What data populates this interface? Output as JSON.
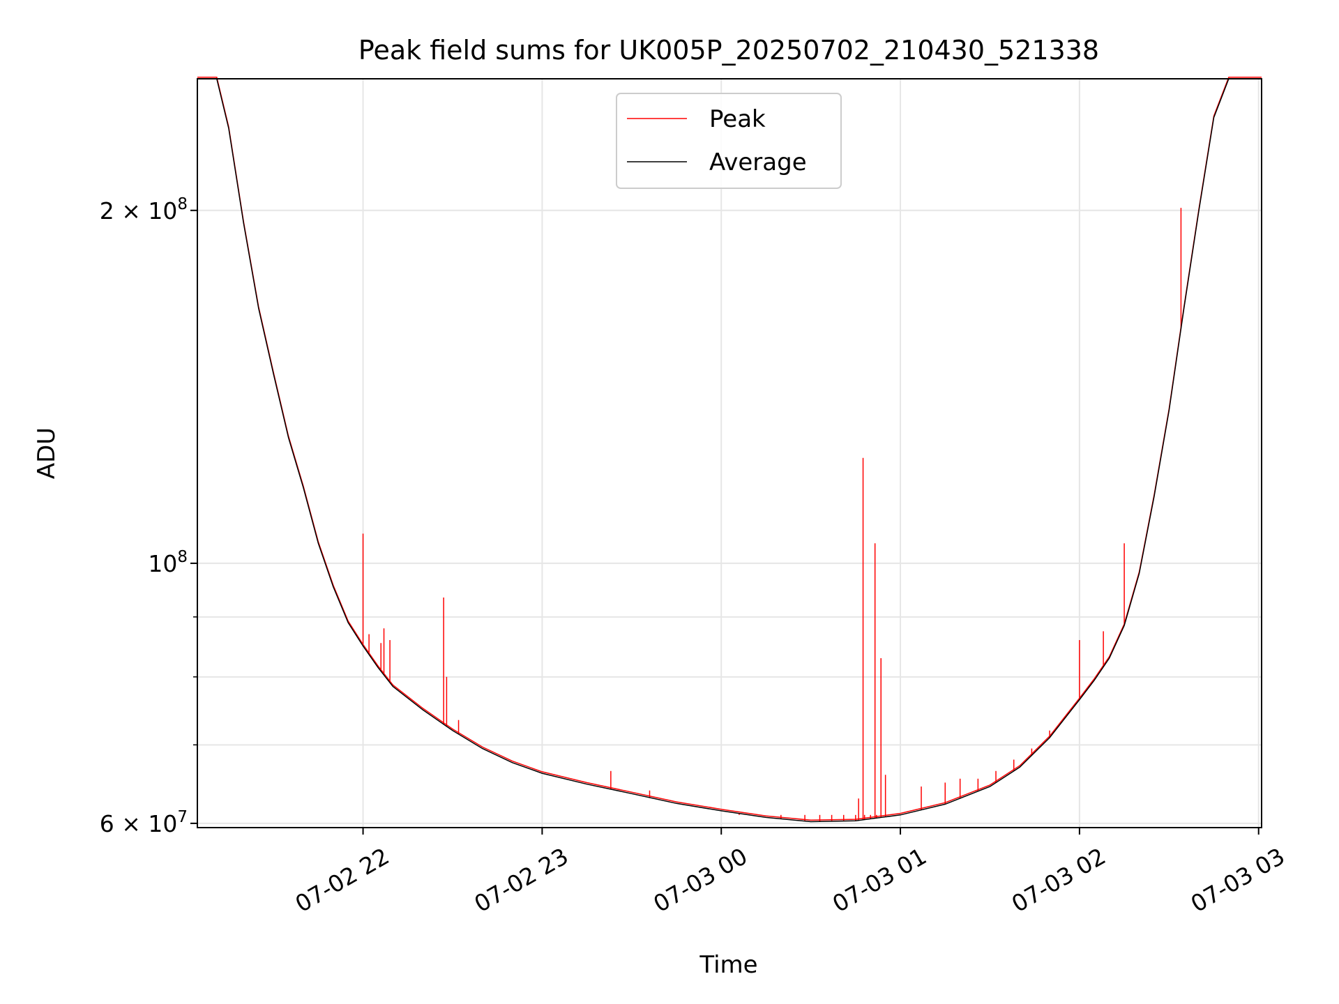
{
  "chart_data": {
    "type": "line",
    "title": "Peak field sums for UK005P_20250702_210430_521338",
    "xlabel": "Time",
    "ylabel": "ADU",
    "x_axis": {
      "type": "datetime",
      "range": [
        "2025-07-02T21:04:30",
        "2025-07-03T03:01:00"
      ],
      "ticks": [
        {
          "value": "2025-07-02T22:00",
          "label": "07-02 22"
        },
        {
          "value": "2025-07-02T23:00",
          "label": "07-02 23"
        },
        {
          "value": "2025-07-03T00:00",
          "label": "07-03 00"
        },
        {
          "value": "2025-07-03T01:00",
          "label": "07-03 01"
        },
        {
          "value": "2025-07-03T02:00",
          "label": "07-03 02"
        },
        {
          "value": "2025-07-03T03:00",
          "label": "07-03 03"
        }
      ]
    },
    "y_axis": {
      "scale": "log",
      "range": [
        59500000,
        259000000
      ],
      "major_ticks": [
        {
          "value": 100000000,
          "base": "10",
          "exp": "8",
          "mult": ""
        },
        {
          "value": 200000000,
          "base": "10",
          "exp": "8",
          "mult": "2 × "
        },
        {
          "value": 60000000,
          "base": "10",
          "exp": "7",
          "mult": "6 × "
        }
      ],
      "minor_ticks": [
        70000000,
        80000000,
        90000000
      ]
    },
    "grid": true,
    "legend": {
      "position": "upper center",
      "entries": [
        {
          "label": "Peak",
          "color": "#ff0000"
        },
        {
          "label": "Average",
          "color": "#000000"
        }
      ]
    },
    "series": [
      {
        "name": "Average",
        "color": "#000000",
        "points": [
          [
            "2025-07-02T21:04:30",
            259000000
          ],
          [
            "2025-07-02T21:11:00",
            259000000
          ],
          [
            "2025-07-02T21:15:00",
            235000000
          ],
          [
            "2025-07-02T21:20:00",
            195000000
          ],
          [
            "2025-07-02T21:25:00",
            165000000
          ],
          [
            "2025-07-02T21:30:00",
            145000000
          ],
          [
            "2025-07-02T21:35:00",
            128000000
          ],
          [
            "2025-07-02T21:40:00",
            116000000
          ],
          [
            "2025-07-02T21:45:00",
            104000000
          ],
          [
            "2025-07-02T21:50:00",
            95500000
          ],
          [
            "2025-07-02T21:55:00",
            89000000
          ],
          [
            "2025-07-02T22:00:00",
            85000000
          ],
          [
            "2025-07-02T22:05:00",
            81500000
          ],
          [
            "2025-07-02T22:10:00",
            78500000
          ],
          [
            "2025-07-02T22:20:00",
            75000000
          ],
          [
            "2025-07-02T22:30:00",
            72000000
          ],
          [
            "2025-07-02T22:40:00",
            69500000
          ],
          [
            "2025-07-02T22:50:00",
            67600000
          ],
          [
            "2025-07-02T23:00:00",
            66200000
          ],
          [
            "2025-07-02T23:15:00",
            64800000
          ],
          [
            "2025-07-02T23:30:00",
            63600000
          ],
          [
            "2025-07-02T23:45:00",
            62400000
          ],
          [
            "2025-07-03T00:00:00",
            61500000
          ],
          [
            "2025-07-03T00:15:00",
            60700000
          ],
          [
            "2025-07-03T00:30:00",
            60200000
          ],
          [
            "2025-07-03T00:45:00",
            60300000
          ],
          [
            "2025-07-03T01:00:00",
            61000000
          ],
          [
            "2025-07-03T01:15:00",
            62300000
          ],
          [
            "2025-07-03T01:30:00",
            64500000
          ],
          [
            "2025-07-03T01:40:00",
            67000000
          ],
          [
            "2025-07-03T01:50:00",
            71000000
          ],
          [
            "2025-07-03T02:00:00",
            76500000
          ],
          [
            "2025-07-03T02:05:00",
            79500000
          ],
          [
            "2025-07-03T02:10:00",
            83000000
          ],
          [
            "2025-07-03T02:15:00",
            88500000
          ],
          [
            "2025-07-03T02:20:00",
            98000000
          ],
          [
            "2025-07-03T02:25:00",
            114000000
          ],
          [
            "2025-07-03T02:30:00",
            135000000
          ],
          [
            "2025-07-03T02:35:00",
            165000000
          ],
          [
            "2025-07-03T02:40:00",
            200000000
          ],
          [
            "2025-07-03T02:45:00",
            240000000
          ],
          [
            "2025-07-03T02:50:00",
            259000000
          ],
          [
            "2025-07-03T03:01:00",
            259000000
          ]
        ]
      },
      {
        "name": "Peak",
        "color": "#ff0000",
        "spikes": [
          [
            "2025-07-02T22:00:00",
            106000000
          ],
          [
            "2025-07-02T22:02:00",
            87000000
          ],
          [
            "2025-07-02T22:06:00",
            85500000
          ],
          [
            "2025-07-02T22:07:00",
            88000000
          ],
          [
            "2025-07-02T22:09:00",
            86000000
          ],
          [
            "2025-07-02T22:27:00",
            93500000
          ],
          [
            "2025-07-02T22:28:00",
            80000000
          ],
          [
            "2025-07-02T22:32:00",
            73500000
          ],
          [
            "2025-07-02T23:23:00",
            66500000
          ],
          [
            "2025-07-02T23:36:00",
            64000000
          ],
          [
            "2025-07-03T00:06:00",
            61000000
          ],
          [
            "2025-07-03T00:20:00",
            61000000
          ],
          [
            "2025-07-03T00:28:00",
            61000000
          ],
          [
            "2025-07-03T00:33:00",
            61000000
          ],
          [
            "2025-07-03T00:37:00",
            61000000
          ],
          [
            "2025-07-03T00:41:00",
            61000000
          ],
          [
            "2025-07-03T00:45:00",
            61000000
          ],
          [
            "2025-07-03T00:48:00",
            61000000
          ],
          [
            "2025-07-03T00:50:00",
            61000000
          ],
          [
            "2025-07-03T00:52:00",
            61000000
          ],
          [
            "2025-07-03T00:46:00",
            63000000
          ],
          [
            "2025-07-03T00:47:30",
            123000000
          ],
          [
            "2025-07-03T00:51:30",
            104000000
          ],
          [
            "2025-07-03T00:53:30",
            83000000
          ],
          [
            "2025-07-03T00:55:00",
            66000000
          ],
          [
            "2025-07-03T01:07:00",
            64500000
          ],
          [
            "2025-07-03T01:15:00",
            65000000
          ],
          [
            "2025-07-03T01:20:00",
            65500000
          ],
          [
            "2025-07-03T01:26:00",
            65500000
          ],
          [
            "2025-07-03T01:32:00",
            66500000
          ],
          [
            "2025-07-03T01:38:00",
            68000000
          ],
          [
            "2025-07-03T01:44:00",
            69500000
          ],
          [
            "2025-07-03T01:50:00",
            72000000
          ],
          [
            "2025-07-03T02:00:00",
            86000000
          ],
          [
            "2025-07-03T02:08:00",
            87500000
          ],
          [
            "2025-07-03T02:15:00",
            104000000
          ],
          [
            "2025-07-03T02:34:00",
            201000000
          ]
        ]
      }
    ]
  }
}
